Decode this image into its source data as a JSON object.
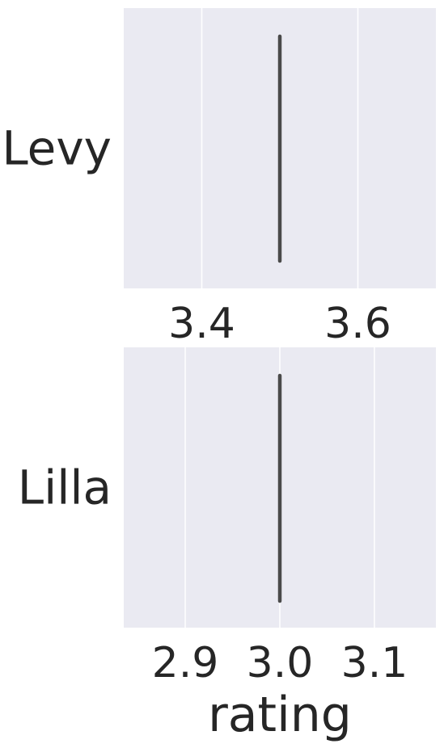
{
  "chart_data": [
    {
      "type": "box",
      "category": "Levy",
      "xlim": [
        3.3,
        3.7
      ],
      "ticks": [
        3.4,
        3.6
      ],
      "tick_labels": [
        "3.4",
        "3.6"
      ],
      "values": [
        3.5
      ],
      "grid": true,
      "xlabel": ""
    },
    {
      "type": "box",
      "category": "Lilla",
      "xlim": [
        2.835,
        3.165
      ],
      "ticks": [
        2.9,
        3.0,
        3.1
      ],
      "tick_labels": [
        "2.9",
        "3.0",
        "3.1"
      ],
      "values": [
        3.0
      ],
      "grid": true,
      "xlabel": "rating"
    }
  ],
  "colors": {
    "plot_background": "#eaeaf2",
    "grid": "#ffffff",
    "mark": "#4a4a4a",
    "text": "#262626"
  }
}
